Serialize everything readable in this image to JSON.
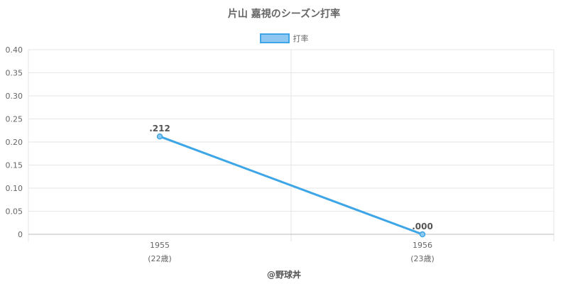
{
  "colors": {
    "series_line": "#3ea6e6",
    "series_fill": "#8ec8f0",
    "grid": "#e6e6e6",
    "axis": "#bbbbbb",
    "text": "#666666"
  },
  "footer": {
    "credit": "@野球丼"
  },
  "chart_data": {
    "type": "line",
    "title": "片山 嘉視のシーズン打率",
    "xlabel": "",
    "ylabel": "",
    "categories": [
      "1955",
      "1956"
    ],
    "category_sublabels": [
      "(22歳)",
      "(23歳)"
    ],
    "ylim": [
      0,
      0.4
    ],
    "yticks": [
      "0",
      "0.05",
      "0.10",
      "0.15",
      "0.20",
      "0.25",
      "0.30",
      "0.35",
      "0.40"
    ],
    "grid": true,
    "legend_position": "top-center",
    "series": [
      {
        "name": "打率",
        "values": [
          0.212,
          0.0
        ],
        "data_labels": [
          ".212",
          ".000"
        ]
      }
    ]
  }
}
